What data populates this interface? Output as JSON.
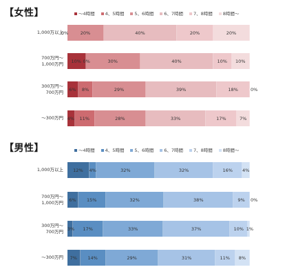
{
  "chart_data": [
    {
      "type": "bar",
      "stacked": "horizontal-100",
      "title": "【女性】",
      "legend_position": "top",
      "series_names": [
        "～4時間",
        "4、5時間",
        "5、6時間",
        "6、7時間",
        "7、8時間",
        "8時間～"
      ],
      "colors": [
        "#a8323a",
        "#cd6b70",
        "#d88e92",
        "#e7bcbf",
        "#eec8cb",
        "#f3dcdd"
      ],
      "categories": [
        [
          "1,000万以上"
        ],
        [
          "700万円～",
          "1,000万円"
        ],
        [
          "300万円～",
          "700万円"
        ],
        [
          "～300万円"
        ]
      ],
      "values": [
        [
          0,
          0,
          20,
          40,
          20,
          20
        ],
        [
          10,
          0,
          30,
          40,
          10,
          10
        ],
        [
          6,
          8,
          29,
          39,
          18,
          0
        ],
        [
          4,
          11,
          28,
          33,
          17,
          7
        ]
      ],
      "value_labels": [
        [
          "0%",
          "",
          "20%",
          "40%",
          "20%",
          "20%"
        ],
        [
          "10%",
          "0%",
          "30%",
          "40%",
          "10%",
          "10%"
        ],
        [
          "6%",
          "8%",
          "29%",
          "39%",
          "18%",
          "0%"
        ],
        [
          "4%",
          "11%",
          "28%",
          "33%",
          "17%",
          "7%"
        ]
      ]
    },
    {
      "type": "bar",
      "stacked": "horizontal-100",
      "title": "【男性】",
      "legend_position": "top",
      "series_names": [
        "～4時間",
        "4、5時間",
        "5、6時間",
        "6、7時間",
        "7、8時間",
        "8時間～"
      ],
      "colors": [
        "#3f6f9f",
        "#5a8ec2",
        "#7fa9d6",
        "#a6c3e6",
        "#bcd2ee",
        "#d3e2f4"
      ],
      "categories": [
        [
          "1,000万以上"
        ],
        [
          "700万円～",
          "1,000万円"
        ],
        [
          "300万円～",
          "700万円"
        ],
        [
          "～300万円"
        ]
      ],
      "values": [
        [
          12,
          4,
          32,
          32,
          16,
          4
        ],
        [
          6,
          15,
          32,
          38,
          9,
          0
        ],
        [
          3,
          17,
          33,
          37,
          10,
          1
        ],
        [
          7,
          14,
          29,
          31,
          11,
          8
        ]
      ],
      "value_labels": [
        [
          "12%",
          "4%",
          "32%",
          "32%",
          "16%",
          "4%"
        ],
        [
          "6%",
          "15%",
          "32%",
          "38%",
          "9%",
          "0%"
        ],
        [
          "3%",
          "17%",
          "33%",
          "37%",
          "10%",
          "1%"
        ],
        [
          "7%",
          "14%",
          "29%",
          "31%",
          "11%",
          "8%"
        ]
      ]
    }
  ]
}
